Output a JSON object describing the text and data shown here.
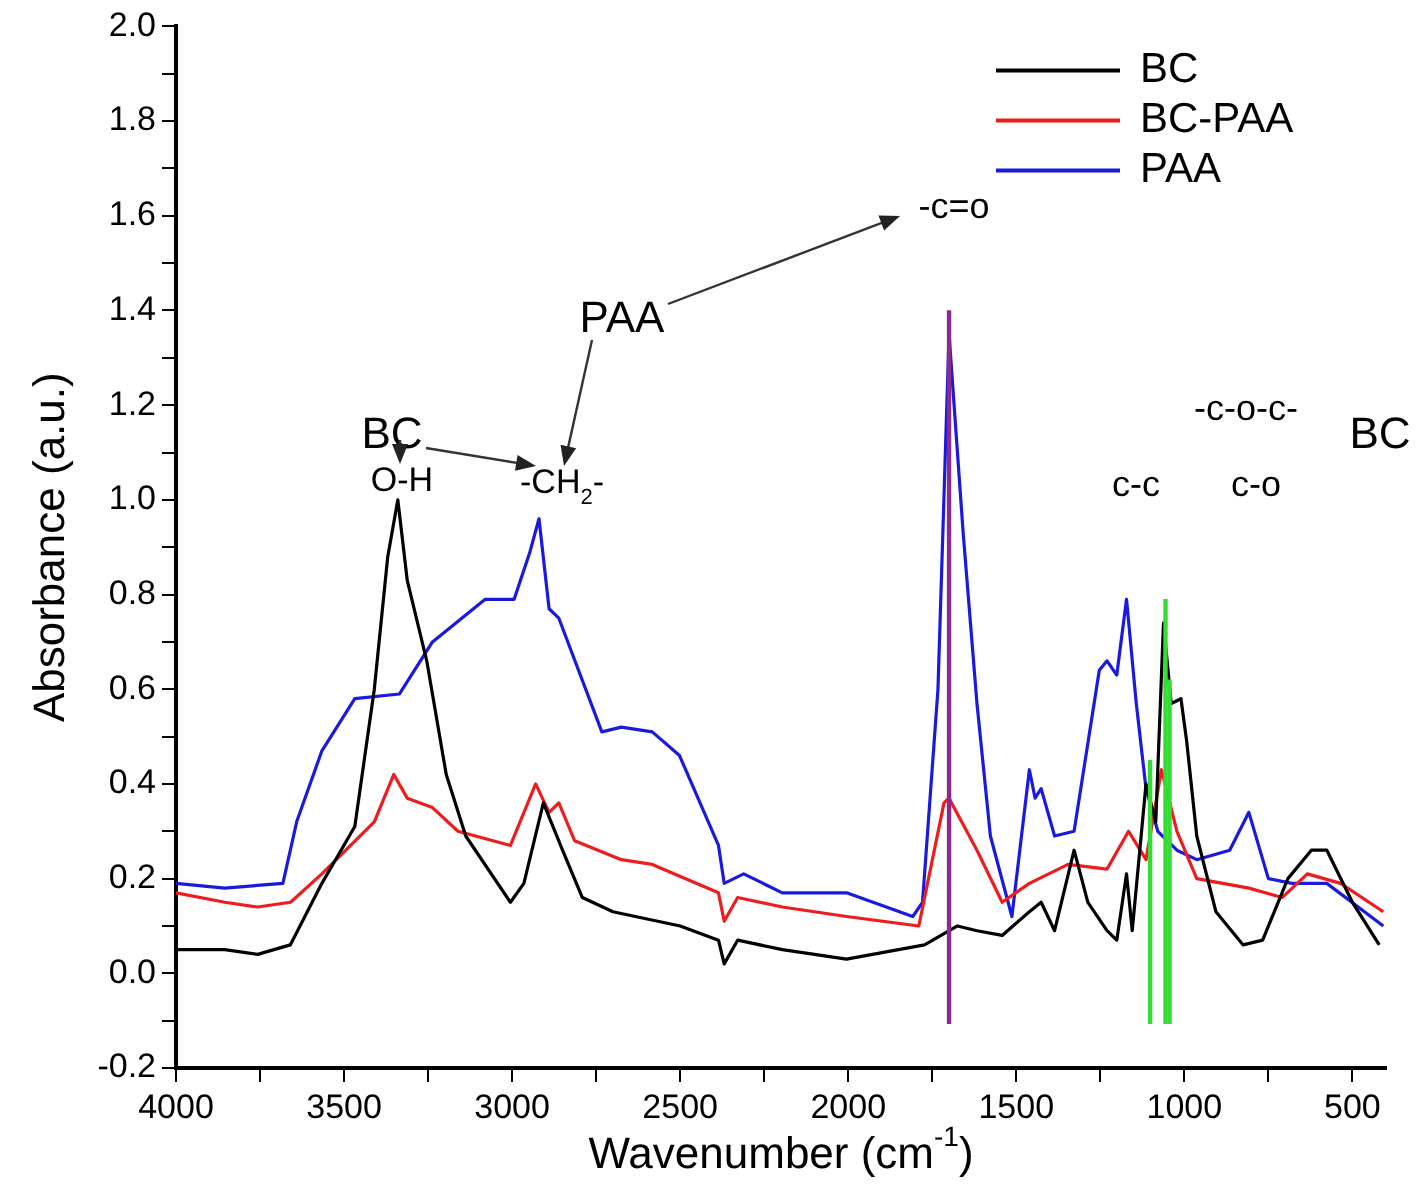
{
  "chart_data": {
    "type": "line",
    "xlabel": "Wavenumber (cm$^{-1}$)",
    "ylabel": "Absorbance (a.u.)",
    "xlim": [
      4000,
      400
    ],
    "xticks": [
      4000,
      {
        "value": 3750,
        "label": null
      },
      3500,
      {
        "value": 3250,
        "label": null
      },
      3000,
      {
        "value": 2750,
        "label": null
      },
      2500,
      {
        "value": 2250,
        "label": null
      },
      2000,
      {
        "value": 1750,
        "label": null
      },
      1500,
      {
        "value": 1250,
        "label": null
      },
      1000,
      {
        "value": 750,
        "label": null
      },
      500
    ],
    "ylim": [
      -0.2,
      2.0
    ],
    "yticks": [
      {
        "value": -0.2,
        "label": "-0.2"
      },
      {
        "value": -0.1,
        "label": null
      },
      {
        "value": 0,
        "label": "0.0"
      },
      {
        "value": 0.1,
        "label": null
      },
      {
        "value": 0.2,
        "label": "0.2"
      },
      {
        "value": 0.3,
        "label": null
      },
      {
        "value": 0.4,
        "label": "0.4"
      },
      {
        "value": 0.5,
        "label": null
      },
      {
        "value": 0.6,
        "label": "0.6"
      },
      {
        "value": 0.7,
        "label": null
      },
      {
        "value": 0.8,
        "label": "0.8"
      },
      {
        "value": 0.9,
        "label": null
      },
      {
        "value": 1.0,
        "label": "1.0"
      },
      {
        "value": 1.1,
        "label": null
      },
      {
        "value": 1.2,
        "label": "1.2"
      },
      {
        "value": 1.3,
        "label": null
      },
      {
        "value": 1.4,
        "label": "1.4"
      },
      {
        "value": 1.5,
        "label": null
      },
      {
        "value": 1.6,
        "label": "1.6"
      },
      {
        "value": 1.7,
        "label": null
      },
      {
        "value": 1.8,
        "label": "1.8"
      },
      {
        "value": 1.9,
        "label": null
      },
      {
        "value": 2.0,
        "label": "2.0"
      }
    ],
    "grid": false,
    "legend": "top right",
    "marker": "none",
    "line_style": "solid",
    "series": [
      {
        "name": "BC",
        "color": "#000000",
        "x": [
          4000,
          3855,
          3757,
          3660,
          3566,
          3468,
          3410,
          3370,
          3340,
          3312,
          3254,
          3196,
          3138,
          3005,
          2965,
          2907,
          2850,
          2791,
          2700,
          2500,
          2386,
          2369,
          2329,
          2196,
          2005,
          1773,
          1675,
          1617,
          1542,
          1461,
          1426,
          1386,
          1328,
          1287,
          1230,
          1201,
          1172,
          1155,
          1114,
          1085,
          1062,
          1039,
          1010,
          993,
          963,
          906,
          825,
          767,
          692,
          622,
          576,
          500,
          420
        ],
        "values": [
          0.05,
          0.05,
          0.04,
          0.06,
          0.19,
          0.31,
          0.6,
          0.88,
          1.0,
          0.83,
          0.66,
          0.42,
          0.29,
          0.15,
          0.19,
          0.36,
          0.26,
          0.16,
          0.13,
          0.1,
          0.07,
          0.02,
          0.07,
          0.05,
          0.03,
          0.06,
          0.1,
          0.09,
          0.08,
          0.13,
          0.15,
          0.09,
          0.26,
          0.15,
          0.09,
          0.07,
          0.21,
          0.09,
          0.4,
          0.32,
          0.74,
          0.57,
          0.58,
          0.49,
          0.29,
          0.13,
          0.06,
          0.07,
          0.2,
          0.26,
          0.26,
          0.15,
          0.06
        ]
      },
      {
        "name": "BC-PAA",
        "color": "#ee1c1c",
        "x": [
          4000,
          3855,
          3757,
          3659,
          3566,
          3410,
          3352,
          3312,
          3237,
          3161,
          3005,
          2930,
          2890,
          2861,
          2814,
          2675,
          2583,
          2386,
          2369,
          2329,
          2196,
          2005,
          1790,
          1715,
          1700,
          1617,
          1542,
          1461,
          1346,
          1230,
          1166,
          1114,
          1068,
          1022,
          963,
          808,
          709,
          634,
          535,
          408
        ],
        "values": [
          0.17,
          0.15,
          0.14,
          0.15,
          0.21,
          0.32,
          0.42,
          0.37,
          0.35,
          0.3,
          0.27,
          0.4,
          0.34,
          0.36,
          0.28,
          0.24,
          0.23,
          0.17,
          0.11,
          0.16,
          0.14,
          0.12,
          0.1,
          0.36,
          0.37,
          0.26,
          0.15,
          0.19,
          0.23,
          0.22,
          0.3,
          0.24,
          0.43,
          0.3,
          0.2,
          0.18,
          0.16,
          0.21,
          0.19,
          0.13
        ]
      },
      {
        "name": "PAA",
        "color": "#1a1adf",
        "x": [
          4000,
          3855,
          3682,
          3641,
          3566,
          3468,
          3335,
          3237,
          3080,
          2994,
          2947,
          2920,
          2890,
          2861,
          2733,
          2675,
          2583,
          2502,
          2386,
          2369,
          2311,
          2196,
          2005,
          1808,
          1779,
          1733,
          1700,
          1658,
          1617,
          1577,
          1513,
          1461,
          1444,
          1426,
          1386,
          1328,
          1253,
          1230,
          1201,
          1172,
          1143,
          1114,
          1079,
          1022,
          963,
          865,
          808,
          750,
          680,
          576,
          408
        ],
        "values": [
          0.19,
          0.18,
          0.19,
          0.32,
          0.47,
          0.58,
          0.59,
          0.7,
          0.79,
          0.79,
          0.89,
          0.96,
          0.77,
          0.75,
          0.51,
          0.52,
          0.51,
          0.46,
          0.27,
          0.19,
          0.21,
          0.17,
          0.17,
          0.12,
          0.15,
          0.6,
          1.35,
          0.93,
          0.57,
          0.29,
          0.12,
          0.43,
          0.37,
          0.39,
          0.29,
          0.3,
          0.64,
          0.66,
          0.63,
          0.79,
          0.57,
          0.39,
          0.3,
          0.26,
          0.24,
          0.26,
          0.34,
          0.2,
          0.19,
          0.19,
          0.1
        ]
      }
    ],
    "ref_lines": [
      {
        "axis": "x",
        "value": 1700,
        "color": "#8b2a8b"
      },
      {
        "axis": "x",
        "value": 1102,
        "color": "#33dd33"
      },
      {
        "axis": "x",
        "value": 1056,
        "color": "#33dd33"
      },
      {
        "axis": "x",
        "value": 1044,
        "color": "#33dd33"
      }
    ],
    "annotations": [
      "BC",
      "O-H",
      "-CH$_{2}$-",
      "PAA",
      "-c=o",
      "c-c",
      "-c-o-c-",
      "c-o",
      "BC"
    ]
  }
}
